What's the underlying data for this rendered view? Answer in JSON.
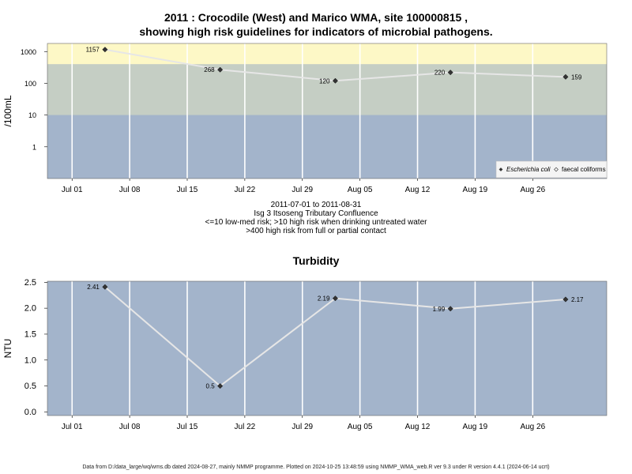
{
  "title_lines": [
    "2011 : Crocodile (West) and Marico WMA, site 100000815 ,",
    "showing high risk guidelines for indicators of microbial pathogens."
  ],
  "caption_lines": [
    "2011-07-01 to 2011-08-31",
    "Isg 3 Itsoseng Tributary Confluence",
    "<=10 low-med risk; >10 high risk when drinking untreated water",
    ">400 high risk from full or partial contact"
  ],
  "footer": "Data from D:/data_large/wq/wms.db dated 2024-08-27, mainly NMMP programme. Plotted on 2024-10-25 13:48:59 using NMMP_WMA_web.R ver 9.3 under R version 4.4.1 (2024-06-14 ucrt)",
  "colors": {
    "panel_bg": "#a3b4cb",
    "band_low": "#a3b4cb",
    "band_high": "#c5cec4",
    "band_contact": "#fdf8c6",
    "line": "#e6e6e6",
    "point": "#333333"
  },
  "chart_data": [
    {
      "type": "line",
      "title": "",
      "ylabel": "/100mL",
      "yscale": "log",
      "ylim": [
        0.1,
        1800
      ],
      "yticks": [
        1,
        10,
        100,
        1000
      ],
      "ytick_labels": [
        "1",
        "10",
        "100",
        "1000"
      ],
      "xlim": [
        "2011-06-28",
        "2011-09-04"
      ],
      "xticks": [
        "2011-07-01",
        "2011-07-08",
        "2011-07-15",
        "2011-07-22",
        "2011-07-29",
        "2011-08-05",
        "2011-08-12",
        "2011-08-19",
        "2011-08-26"
      ],
      "xtick_labels": [
        "Jul 01",
        "Jul 08",
        "Jul 15",
        "Jul 22",
        "Jul 29",
        "Aug 05",
        "Aug 12",
        "Aug 19",
        "Aug 26"
      ],
      "bands": [
        {
          "from": 0.1,
          "to": 10
        },
        {
          "from": 10,
          "to": 400
        },
        {
          "from": 400,
          "to": 1800
        }
      ],
      "series": [
        {
          "name": "Escherichia coli",
          "x": [
            "2011-07-05",
            "2011-07-19",
            "2011-08-02",
            "2011-08-16",
            "2011-08-30"
          ],
          "y": [
            1157,
            268,
            120,
            220,
            159
          ],
          "labels": [
            "1157",
            "268",
            "120",
            "220",
            "159"
          ]
        }
      ],
      "legend": {
        "position": "bottom-right",
        "entries": [
          "Escherichia coli",
          "faecal coliforms"
        ]
      }
    },
    {
      "type": "line",
      "title": "Turbidity",
      "ylabel": "NTU",
      "ylim": [
        -0.07,
        2.52
      ],
      "yticks": [
        0.0,
        0.5,
        1.0,
        1.5,
        2.0,
        2.5
      ],
      "ytick_labels": [
        "0.0",
        "0.5",
        "1.0",
        "1.5",
        "2.0",
        "2.5"
      ],
      "xlim": [
        "2011-06-28",
        "2011-09-04"
      ],
      "xticks": [
        "2011-07-01",
        "2011-07-08",
        "2011-07-15",
        "2011-07-22",
        "2011-07-29",
        "2011-08-05",
        "2011-08-12",
        "2011-08-19",
        "2011-08-26"
      ],
      "xtick_labels": [
        "Jul 01",
        "Jul 08",
        "Jul 15",
        "Jul 22",
        "Jul 29",
        "Aug 05",
        "Aug 12",
        "Aug 19",
        "Aug 26"
      ],
      "series": [
        {
          "x": [
            "2011-07-05",
            "2011-07-19",
            "2011-08-02",
            "2011-08-16",
            "2011-08-30"
          ],
          "y": [
            2.41,
            0.5,
            2.19,
            1.99,
            2.17
          ],
          "labels": [
            "2.41",
            "0.5",
            "2.19",
            "1.99",
            "2.17"
          ]
        }
      ]
    }
  ]
}
